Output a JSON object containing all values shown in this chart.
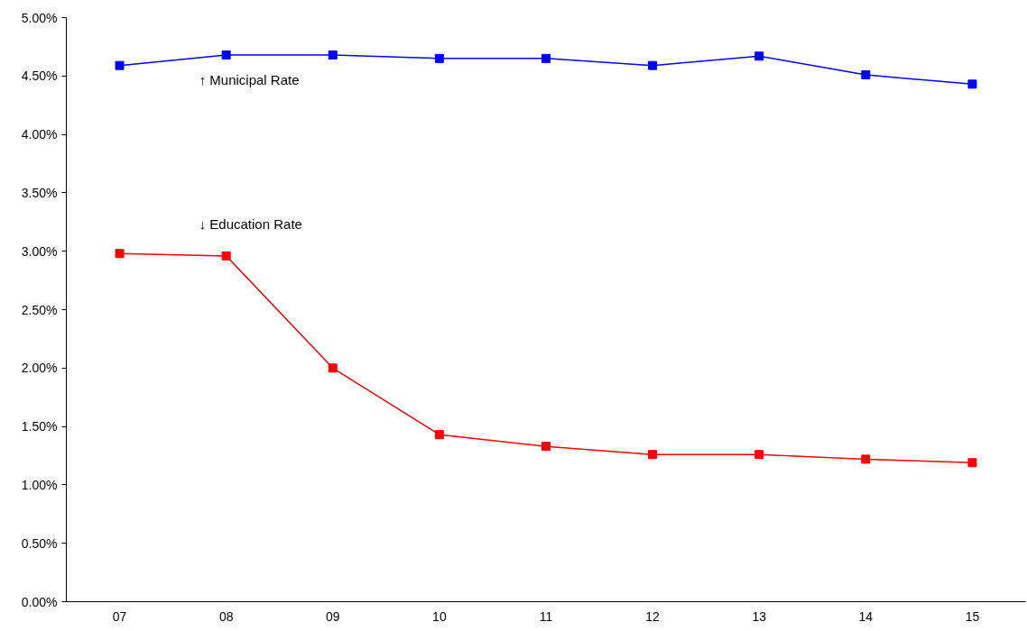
{
  "chart_data": {
    "type": "line",
    "categories": [
      "07",
      "08",
      "09",
      "10",
      "11",
      "12",
      "13",
      "14",
      "15"
    ],
    "series": [
      {
        "color": "#0000ff",
        "values": [
          4.59,
          4.68,
          4.68,
          4.65,
          4.65,
          4.59,
          4.67,
          4.51,
          4.43
        ]
      },
      {
        "color": "#ff0000",
        "values": [
          2.98,
          2.96,
          2.0,
          1.43,
          1.33,
          1.26,
          1.26,
          1.22,
          1.19
        ]
      }
    ],
    "annotations": [
      "↑ Municipal Rate",
      "↓ Education Rate"
    ],
    "ylim": [
      0,
      5
    ],
    "yticks": [
      {
        "value": 0,
        "label": "0.00%"
      },
      {
        "value": 0.5,
        "label": "0.50%"
      },
      {
        "value": 1,
        "label": "1.00%"
      },
      {
        "value": 1.5,
        "label": "1.50%"
      },
      {
        "value": 2,
        "label": "2.00%"
      },
      {
        "value": 2.5,
        "label": "2.50%"
      },
      {
        "value": 3,
        "label": "3.00%"
      },
      {
        "value": 3.5,
        "label": "3.50%"
      },
      {
        "value": 4,
        "label": "4.00%"
      },
      {
        "value": 4.5,
        "label": "4.50%"
      },
      {
        "value": 5,
        "label": "5.00%"
      }
    ],
    "grid": false,
    "marker": "square",
    "line_style": "solid"
  }
}
